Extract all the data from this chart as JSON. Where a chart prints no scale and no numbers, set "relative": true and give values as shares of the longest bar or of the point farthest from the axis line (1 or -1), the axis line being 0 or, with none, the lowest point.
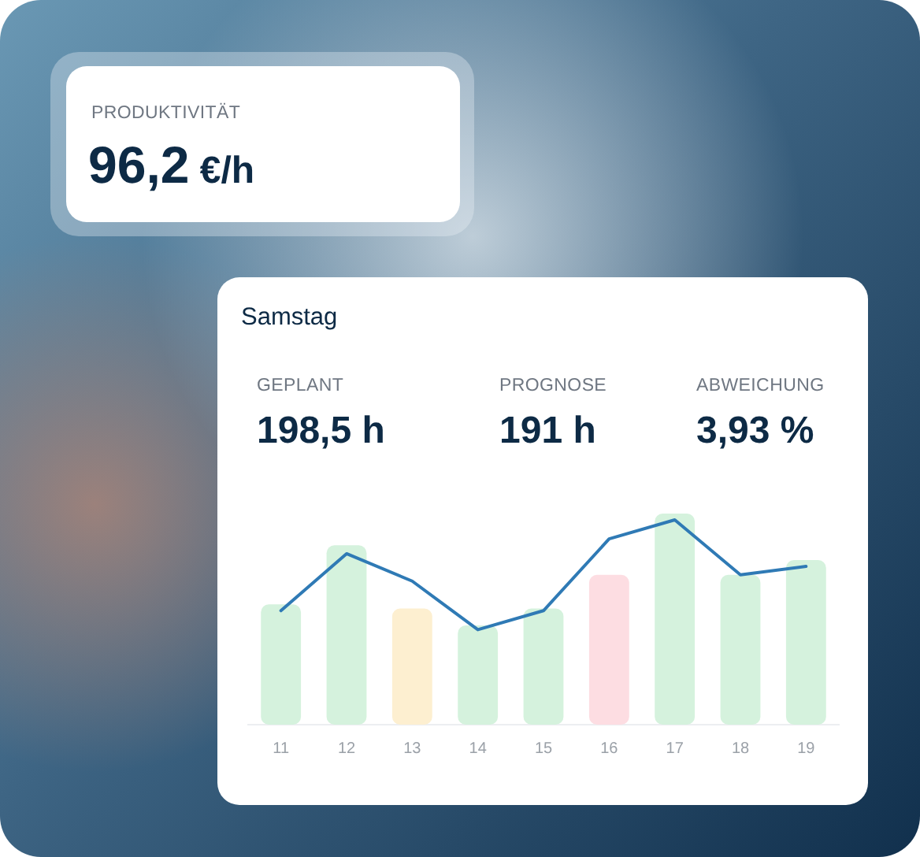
{
  "chart_data": [
    {
      "type": "other",
      "title": "PRODUKTIVITÄT",
      "annotations": [
        "96,2 €/h"
      ]
    },
    {
      "type": "other",
      "title": "Samstag",
      "annotations": [
        "GEPLANT",
        "198,5 h",
        "PROGNOSE",
        "191 h",
        "ABWEICHUNG",
        "3,93 %"
      ]
    },
    {
      "type": "bar",
      "categories": [
        "11",
        "12",
        "13",
        "14",
        "15",
        "16",
        "17",
        "18",
        "19"
      ],
      "relative": true,
      "tick_labels": "x",
      "series": [
        {
          "colors": [
            "#d5f2dd",
            "#d5f2dd",
            "#fdefd0",
            "#d5f2dd",
            "#d5f2dd",
            "#fddde2",
            "#d5f2dd",
            "#d5f2dd",
            "#d5f2dd"
          ],
          "values": [
            0.57,
            0.85,
            0.55,
            0.47,
            0.55,
            0.71,
            1,
            0.71,
            0.78
          ]
        },
        {
          "type": "line",
          "color": "#2f7ab5",
          "values": [
            0.54,
            0.81,
            0.68,
            0.45,
            0.54,
            0.88,
            0.97,
            0.71,
            0.75
          ]
        }
      ]
    }
  ]
}
